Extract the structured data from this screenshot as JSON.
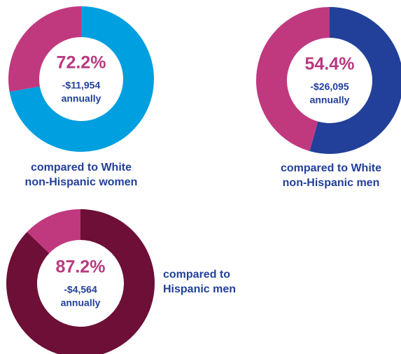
{
  "chart_data": [
    {
      "type": "pie",
      "donut": true,
      "values": [
        72.2,
        27.8
      ],
      "colors": [
        "#009fdf",
        "#c0397f"
      ],
      "value_labels": [
        "72.2%",
        null
      ],
      "subtitle": "-$11,954",
      "note": "annually",
      "caption": [
        "compared to White",
        "non-Hispanic women"
      ]
    },
    {
      "type": "pie",
      "donut": true,
      "values": [
        54.4,
        45.6
      ],
      "colors": [
        "#22409a",
        "#c0397f"
      ],
      "value_labels": [
        "54.4%",
        null
      ],
      "subtitle": "-$26,095",
      "note": "annually",
      "caption": [
        "compared to White",
        "non-Hispanic men"
      ]
    },
    {
      "type": "pie",
      "donut": true,
      "values": [
        87.2,
        12.8
      ],
      "colors": [
        "#6d0f36",
        "#c0397f"
      ],
      "value_labels": [
        "87.2%",
        null
      ],
      "subtitle": "-$4,564",
      "note": "annually",
      "caption": [
        "compared to",
        "Hispanic men"
      ]
    }
  ]
}
